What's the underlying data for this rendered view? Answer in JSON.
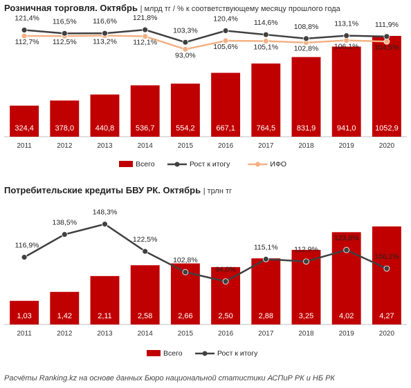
{
  "chart_data": [
    {
      "type": "bar",
      "title": "Розничная торговля. Октябрь",
      "subtitle": "| млрд тг / % к соответствующему  месяцу прошлого года",
      "categories": [
        "2011",
        "2012",
        "2013",
        "2014",
        "2015",
        "2016",
        "2017",
        "2018",
        "2019",
        "2020"
      ],
      "series": [
        {
          "name": "Всего",
          "kind": "bar",
          "color": "#c00000",
          "values": [
            324.4,
            378.0,
            440.8,
            536.7,
            554.2,
            667.1,
            764.5,
            831.9,
            941.0,
            1052.9
          ],
          "labels": [
            "324,4",
            "378,0",
            "440,8",
            "536,7",
            "554,2",
            "667,1",
            "764,5",
            "831,9",
            "941,0",
            "1052,9"
          ]
        },
        {
          "name": "Рост к итогу",
          "kind": "line",
          "color": "#404040",
          "values": [
            121.4,
            116.5,
            116.6,
            121.8,
            103.3,
            120.4,
            114.6,
            108.8,
            113.1,
            111.9
          ],
          "labels": [
            "121,4%",
            "116,5%",
            "116,6%",
            "121,8%",
            "103,3%",
            "120,4%",
            "114,6%",
            "108,8%",
            "113,1%",
            "111,9%"
          ]
        },
        {
          "name": "ИФО",
          "kind": "line",
          "color": "#f4b183",
          "values": [
            112.7,
            112.5,
            113.2,
            112.1,
            93.0,
            105.6,
            105.1,
            102.8,
            106.1,
            104.5
          ],
          "labels": [
            "112,7%",
            "112,5%",
            "113,2%",
            "112,1%",
            "93,0%",
            "105,6%",
            "105,1%",
            "102,8%",
            "106,1%",
            "104,5%"
          ]
        }
      ],
      "legend": [
        "Всего",
        "Рост к итогу",
        "ИФО"
      ],
      "legend_position": "bottom"
    },
    {
      "type": "bar",
      "title": "Потребительские кредиты БВУ РК. Октябрь",
      "subtitle": "| трлн тг",
      "categories": [
        "2011",
        "2012",
        "2013",
        "2014",
        "2015",
        "2016",
        "2017",
        "2018",
        "2019",
        "2020"
      ],
      "series": [
        {
          "name": "Всего",
          "kind": "bar",
          "color": "#c00000",
          "values": [
            1.03,
            1.42,
            2.11,
            2.58,
            2.66,
            2.5,
            2.88,
            3.25,
            4.02,
            4.27
          ],
          "labels": [
            "1,03",
            "1,42",
            "2,11",
            "2,58",
            "2,66",
            "2,50",
            "2,88",
            "3,25",
            "4,02",
            "4,27"
          ]
        },
        {
          "name": "Рост к итогу",
          "kind": "line",
          "color": "#404040",
          "values": [
            116.9,
            138.5,
            148.3,
            122.5,
            102.8,
            94.0,
            115.1,
            112.9,
            123.8,
            106.2
          ],
          "labels": [
            "116,9%",
            "138,5%",
            "148,3%",
            "122,5%",
            "102,8%",
            "94,0%",
            "115,1%",
            "112,9%",
            "123,8%",
            "106,2%"
          ]
        }
      ],
      "legend": [
        "Всего",
        "Рост к итогу"
      ],
      "legend_position": "bottom"
    }
  ],
  "footer": "Расчёты Ranking.kz на основе данных Бюро национальной  статистики АСПиР РК и НБ РК"
}
